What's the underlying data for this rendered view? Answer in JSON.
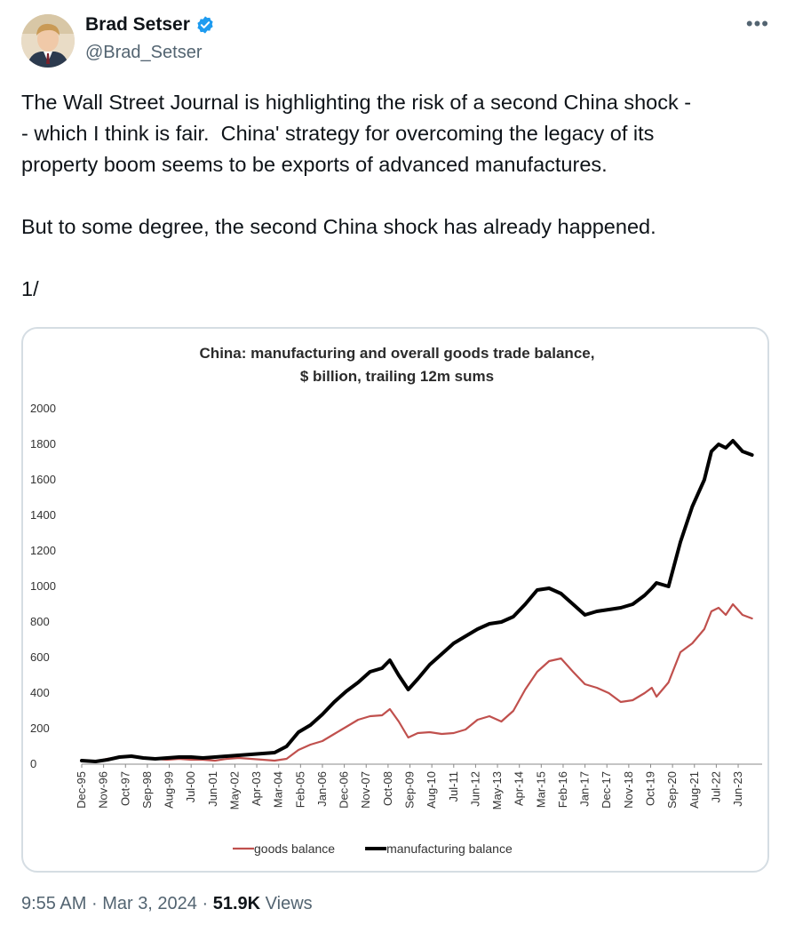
{
  "author": {
    "name": "Brad Setser",
    "handle": "@Brad_Setser",
    "verified": true
  },
  "more_icon": "more-horizontal-icon",
  "tweet": {
    "text": "The Wall Street Journal is highlighting the risk of a second China shock -\n- which I think is fair.  China' strategy for overcoming the legacy of its\nproperty boom seems to be exports of advanced manufactures.\n\nBut to some degree, the second China shock has already happened.\n\n1/"
  },
  "meta": {
    "time": "9:55 AM",
    "date": "Mar 3, 2024",
    "views_count": "51.9K",
    "views_label": "Views",
    "separator": "·"
  },
  "chart_data": {
    "type": "line",
    "title": "China: manufacturing and overall goods trade balance,",
    "subtitle": "$ billion, trailing 12m sums",
    "ylim": [
      0,
      2000
    ],
    "yticks": [
      0,
      200,
      400,
      600,
      800,
      1000,
      1200,
      1400,
      1600,
      1800,
      2000
    ],
    "xlim": [
      1995.92,
      2024.2
    ],
    "xtick_labels": [
      "Dec-95",
      "Nov-96",
      "Oct-97",
      "Sep-98",
      "Aug-99",
      "Jul-00",
      "Jun-01",
      "May-02",
      "Apr-03",
      "Mar-04",
      "Feb-05",
      "Jan-06",
      "Dec-06",
      "Nov-07",
      "Oct-08",
      "Sep-09",
      "Aug-10",
      "Jul-11",
      "Jun-12",
      "May-13",
      "Apr-14",
      "Mar-15",
      "Feb-16",
      "Jan-17",
      "Dec-17",
      "Nov-18",
      "Oct-19",
      "Sep-20",
      "Aug-21",
      "Jul-22",
      "Jun-23"
    ],
    "grid": false,
    "legend": "bottom",
    "series": [
      {
        "name": "goods balance",
        "color": "#c0504d",
        "x": [
          1995.92,
          1996.5,
          1997.0,
          1997.5,
          1998.0,
          1998.5,
          1999.0,
          1999.5,
          2000.0,
          2000.5,
          2001.0,
          2001.5,
          2002.0,
          2002.5,
          2003.0,
          2003.5,
          2004.0,
          2004.5,
          2005.0,
          2005.5,
          2006.0,
          2006.5,
          2007.0,
          2007.5,
          2008.0,
          2008.5,
          2008.83,
          2009.2,
          2009.6,
          2010.0,
          2010.5,
          2011.0,
          2011.5,
          2012.0,
          2012.5,
          2013.0,
          2013.5,
          2014.0,
          2014.5,
          2015.0,
          2015.5,
          2016.0,
          2016.5,
          2017.0,
          2017.5,
          2018.0,
          2018.5,
          2019.0,
          2019.5,
          2019.8,
          2020.0,
          2020.5,
          2021.0,
          2021.5,
          2022.0,
          2022.3,
          2022.6,
          2022.9,
          2023.2,
          2023.6,
          2024.0
        ],
        "y": [
          20,
          15,
          30,
          40,
          45,
          35,
          30,
          25,
          30,
          25,
          25,
          20,
          30,
          35,
          30,
          25,
          20,
          30,
          80,
          110,
          130,
          170,
          210,
          250,
          270,
          275,
          310,
          240,
          150,
          175,
          180,
          170,
          175,
          195,
          250,
          270,
          240,
          300,
          420,
          520,
          580,
          595,
          520,
          450,
          430,
          400,
          350,
          360,
          400,
          430,
          380,
          460,
          630,
          680,
          760,
          860,
          880,
          840,
          900,
          840,
          820
        ]
      },
      {
        "name": "manufacturing balance",
        "color": "#000000",
        "x": [
          1995.92,
          1996.5,
          1997.0,
          1997.5,
          1998.0,
          1998.5,
          1999.0,
          1999.5,
          2000.0,
          2000.5,
          2001.0,
          2001.5,
          2002.0,
          2002.5,
          2003.0,
          2003.5,
          2004.0,
          2004.5,
          2005.0,
          2005.5,
          2006.0,
          2006.5,
          2007.0,
          2007.5,
          2008.0,
          2008.5,
          2008.83,
          2009.2,
          2009.6,
          2010.0,
          2010.5,
          2011.0,
          2011.5,
          2012.0,
          2012.5,
          2013.0,
          2013.5,
          2014.0,
          2014.5,
          2015.0,
          2015.5,
          2016.0,
          2016.5,
          2017.0,
          2017.5,
          2018.0,
          2018.5,
          2019.0,
          2019.5,
          2019.8,
          2020.0,
          2020.5,
          2021.0,
          2021.5,
          2022.0,
          2022.3,
          2022.6,
          2022.9,
          2023.2,
          2023.6,
          2024.0
        ],
        "y": [
          20,
          15,
          25,
          40,
          45,
          35,
          30,
          35,
          40,
          40,
          35,
          40,
          45,
          50,
          55,
          60,
          65,
          100,
          180,
          220,
          280,
          350,
          410,
          460,
          520,
          540,
          585,
          500,
          420,
          480,
          560,
          620,
          680,
          720,
          760,
          790,
          800,
          830,
          900,
          980,
          990,
          960,
          900,
          840,
          860,
          870,
          880,
          900,
          950,
          990,
          1020,
          1000,
          1250,
          1450,
          1600,
          1760,
          1800,
          1780,
          1820,
          1760,
          1740
        ]
      }
    ]
  }
}
